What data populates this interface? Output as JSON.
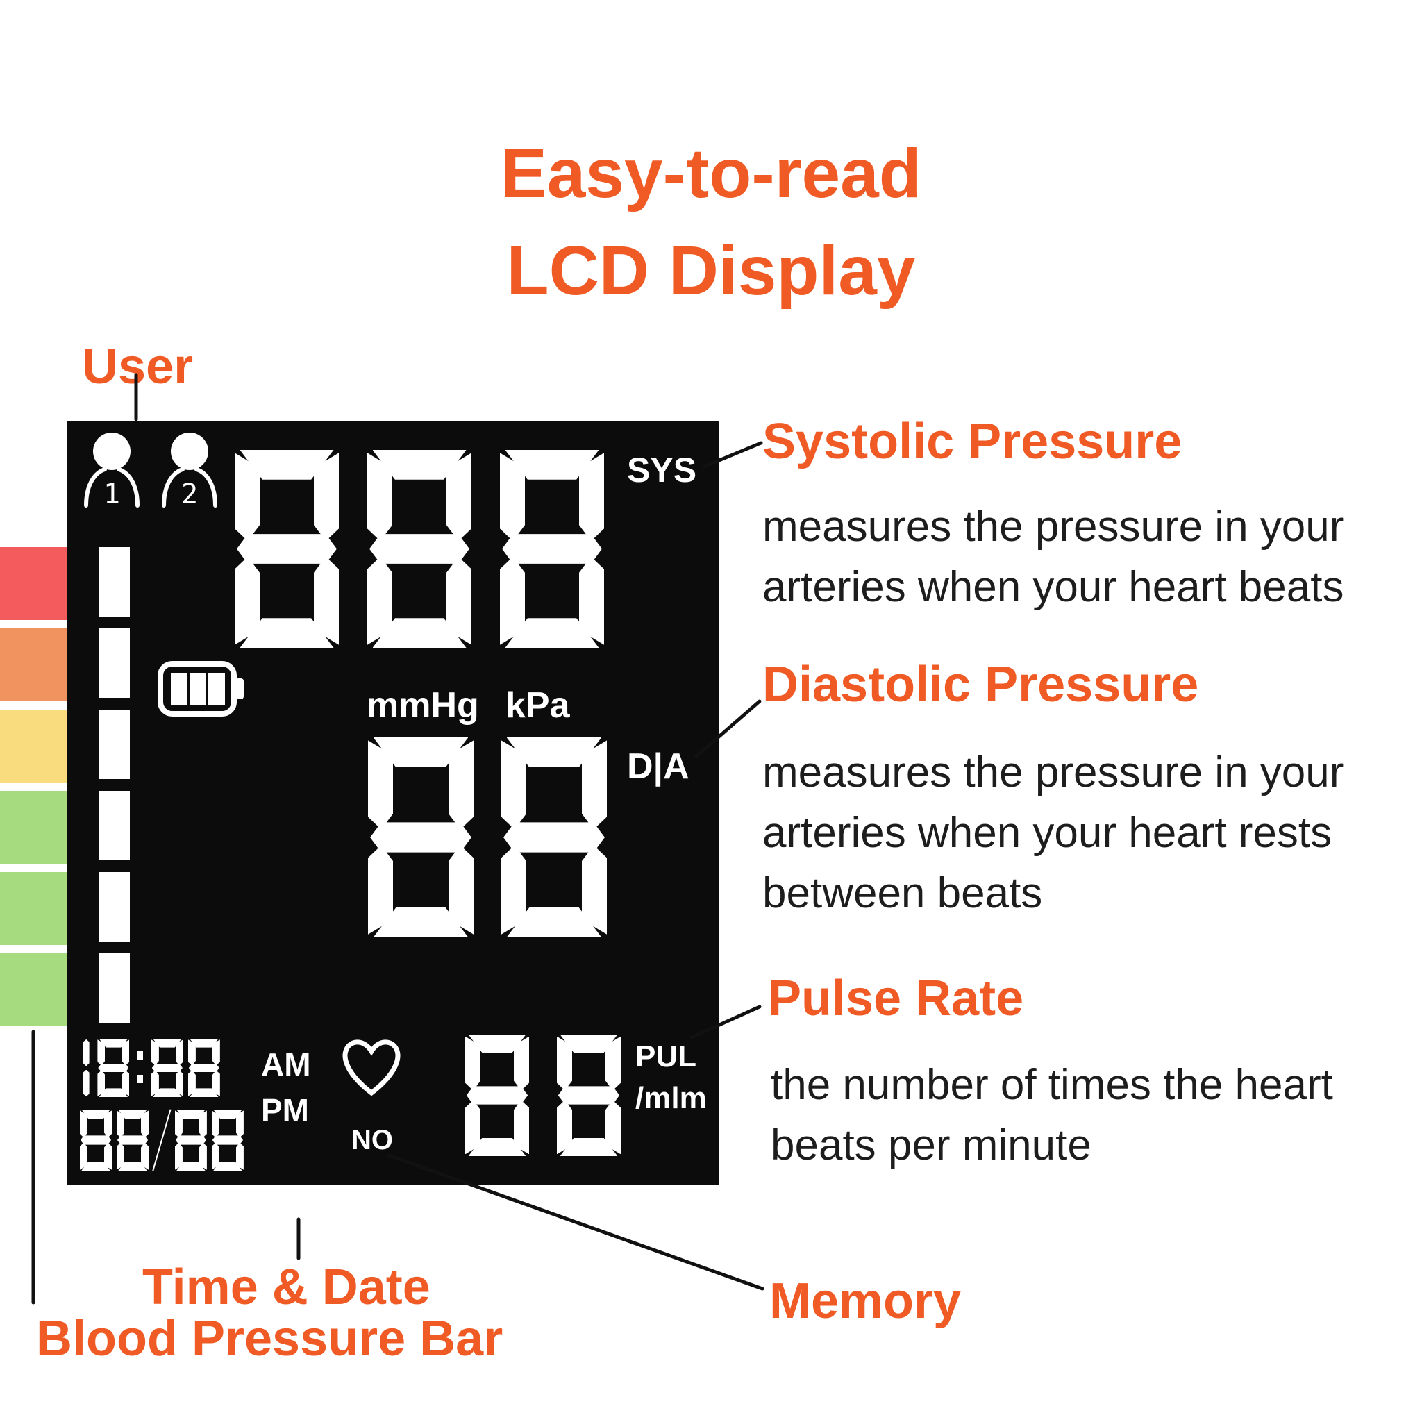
{
  "colors": {
    "accent": "#EF5A25",
    "text": "#1D1D1D",
    "lcd_bg": "#0C0C0C",
    "lcd_fg": "#FFFFFF",
    "bar_red": "#F45B5C",
    "bar_orange": "#F0935F",
    "bar_yellow": "#F8DC7D",
    "bar_green": "#A6DB80"
  },
  "title": {
    "line1": "Easy-to-read",
    "line2": "LCD Display"
  },
  "callouts": {
    "user": {
      "label": "User"
    },
    "systolic": {
      "label": "Systolic Pressure",
      "lines": [
        "measures the pressure in your",
        "arteries when your heart beats"
      ]
    },
    "diastolic": {
      "label": "Diastolic Pressure",
      "lines": [
        "measures the pressure in your",
        "arteries when your heart rests",
        "between beats"
      ]
    },
    "pulse": {
      "label": "Pulse Rate",
      "lines": [
        "the number of times the heart",
        "beats per minute"
      ]
    },
    "time_date": {
      "label": "Time & Date"
    },
    "memory": {
      "label": "Memory"
    },
    "bp_bar": {
      "label": "Blood Pressure Bar"
    }
  },
  "lcd": {
    "user1": "1",
    "user2": "2",
    "sys_label": "SYS",
    "sys_value": "888",
    "unit_mmhg": "mmHg",
    "unit_kpa": "kPa",
    "dia_label": "D|A",
    "dia_value": "88",
    "time_value": "18:88",
    "am": "AM",
    "pm": "PM",
    "date_value": "88/88",
    "memory_indicator": "NO",
    "pulse_value": "88",
    "pulse_label": "PUL",
    "pulse_unit": "/mlm",
    "battery_icon": "battery-icon",
    "heart_icon": "heart-icon",
    "bp_segment_count": 6
  },
  "pressure_bar": {
    "segment_colors": [
      "#F45B5C",
      "#F0935F",
      "#F8DC7D",
      "#A6DB80",
      "#A6DB80",
      "#A6DB80"
    ]
  }
}
